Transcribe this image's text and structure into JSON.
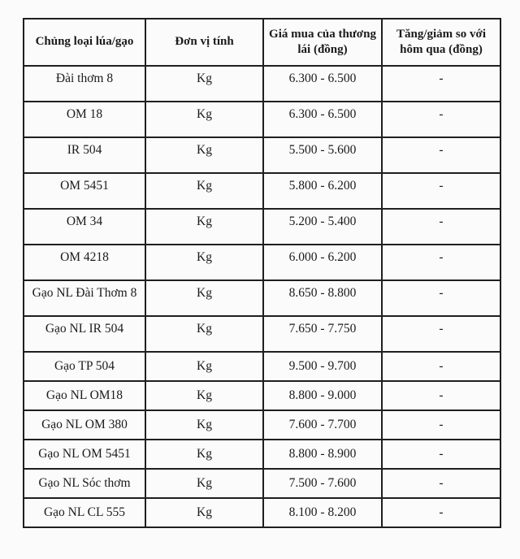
{
  "table": {
    "headers": [
      "Chủng loại lúa/gạo",
      "Đơn vị tính",
      "Giá mua của thương lái (đồng)",
      "Tăng/giảm so với hôm qua (đồng)"
    ],
    "rows": [
      {
        "name": "Đài thơm 8",
        "unit": "Kg",
        "price": "6.300 - 6.500",
        "change": "-"
      },
      {
        "name": "OM 18",
        "unit": "Kg",
        "price": "6.300 - 6.500",
        "change": "-"
      },
      {
        "name": "IR 504",
        "unit": "Kg",
        "price": "5.500 - 5.600",
        "change": "-"
      },
      {
        "name": "OM 5451",
        "unit": "Kg",
        "price": "5.800 - 6.200",
        "change": "-"
      },
      {
        "name": "OM 34",
        "unit": "Kg",
        "price": "5.200 - 5.400",
        "change": "-"
      },
      {
        "name": "OM 4218",
        "unit": "Kg",
        "price": "6.000 - 6.200",
        "change": "-"
      },
      {
        "name": "Gạo NL Đài Thơm 8",
        "unit": "Kg",
        "price": "8.650 - 8.800",
        "change": "-"
      },
      {
        "name": "Gạo NL IR 504",
        "unit": "Kg",
        "price": "7.650 - 7.750",
        "change": "-"
      },
      {
        "name": "Gạo TP 504",
        "unit": "Kg",
        "price": "9.500 - 9.700",
        "change": "-"
      },
      {
        "name": "Gạo NL OM18",
        "unit": "Kg",
        "price": "8.800 - 9.000",
        "change": "-"
      },
      {
        "name": "Gạo NL OM 380",
        "unit": "Kg",
        "price": "7.600 - 7.700",
        "change": "-"
      },
      {
        "name": "Gạo NL OM 5451",
        "unit": "Kg",
        "price": "8.800 - 8.900",
        "change": "-"
      },
      {
        "name": "Gạo NL Sóc thơm",
        "unit": "Kg",
        "price": "7.500 - 7.600",
        "change": "-"
      },
      {
        "name": "Gạo NL CL 555",
        "unit": "Kg",
        "price": "8.100 - 8.200",
        "change": "-"
      }
    ]
  },
  "colors": {
    "border": "#1f1f1f",
    "text": "#1b1b1b",
    "page_background": "#fbfbfb"
  }
}
